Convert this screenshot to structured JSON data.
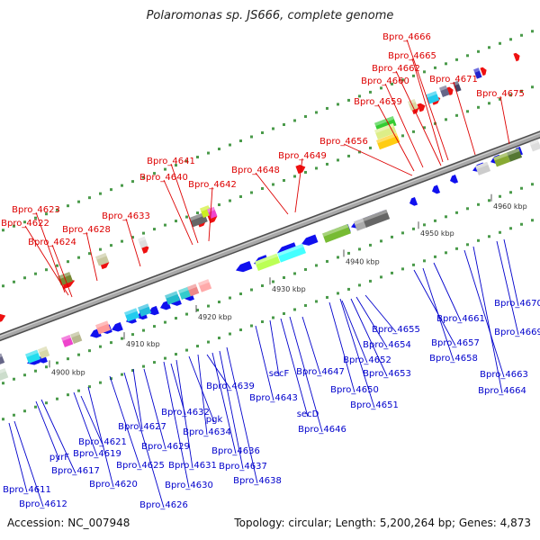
{
  "title": "Polaromonas sp. JS666, complete genome",
  "footer": {
    "accession": "Accession: NC_007948",
    "topology": "Topology: circular; Length: 5,200,264 bp; Genes: 4,873"
  },
  "colors": {
    "backbone": "#8c8c8c",
    "forward_gene": "#ff0000",
    "reverse_gene": "#0000ee",
    "top_label": "#dd0000",
    "bottom_label": "#0000cc",
    "tick": "#2a9a2a"
  },
  "ticks": [
    "4900 kbp",
    "4910 kbp",
    "4920 kbp",
    "4930 kbp",
    "4940 kbp",
    "4950 kbp",
    "4960 kbp"
  ],
  "top_labels": [
    "Bpro_4623",
    "Bpro_4622",
    "Bpro_4624",
    "Bpro_4628",
    "Bpro_4633",
    "Bpro_4640",
    "Bpro_4641",
    "Bpro_4642",
    "Bpro_4648",
    "Bpro_4649",
    "Bpro_4656",
    "Bpro_4659",
    "Bpro_4660",
    "Bpro_4662",
    "Bpro_4665",
    "Bpro_4666",
    "Bpro_4671",
    "Bpro_4675"
  ],
  "bottom_labels": [
    "Bpro_4611",
    "Bpro_4612",
    "pyrF",
    "Bpro_4617",
    "Bpro_4619",
    "Bpro_4620",
    "Bpro_4621",
    "Bpro_4625",
    "Bpro_4626",
    "Bpro_4627",
    "Bpro_4629",
    "Bpro_4630",
    "Bpro_4631",
    "Bpro_4632",
    "pgk",
    "Bpro_4634",
    "Bpro_4636",
    "Bpro_4637",
    "Bpro_4638",
    "Bpro_4639",
    "Bpro_4643",
    "secF",
    "secD",
    "Bpro_4646",
    "Bpro_4647",
    "Bpro_4650",
    "Bpro_4651",
    "Bpro_4652",
    "Bpro_4653",
    "Bpro_4654",
    "Bpro_4655",
    "Bpro_4657",
    "Bpro_4658",
    "Bpro_4661",
    "Bpro_4663",
    "Bpro_4664",
    "Bpro_4669",
    "Bpro_4670"
  ]
}
